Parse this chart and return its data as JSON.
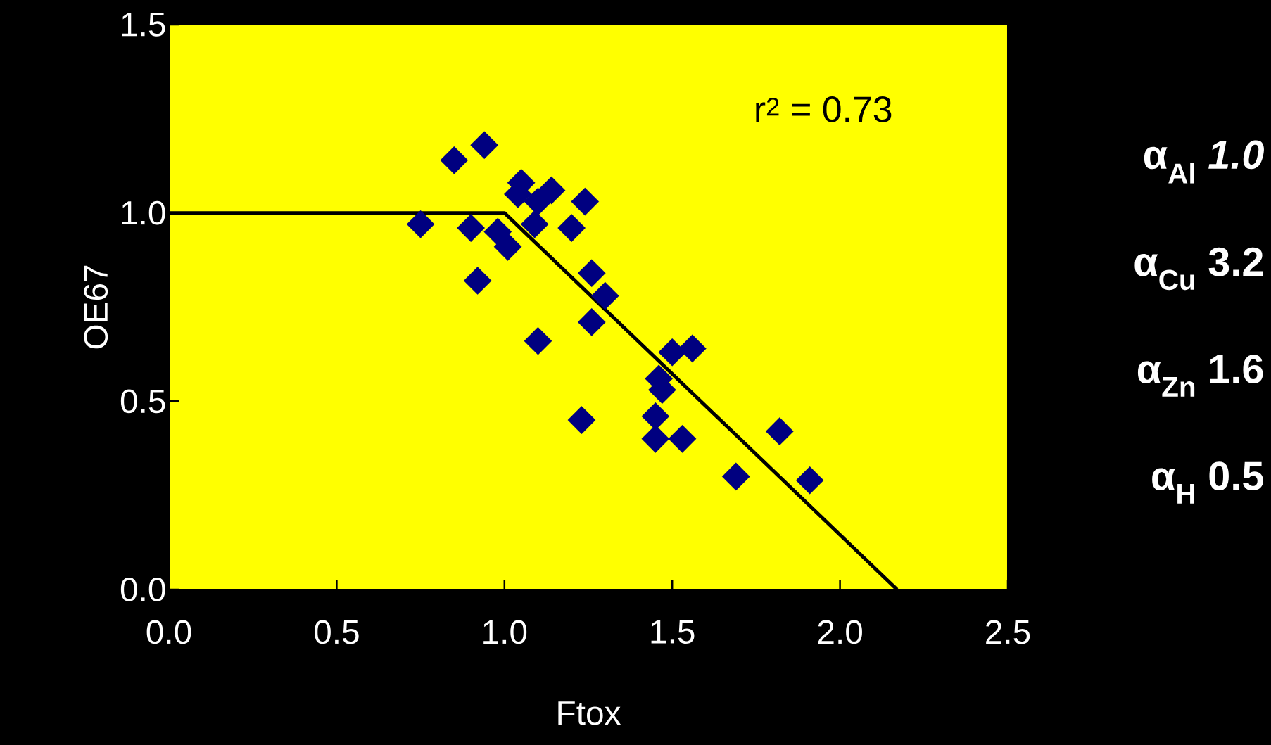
{
  "chart_data": {
    "type": "scatter",
    "xlabel": "Ftox",
    "ylabel": "OE67",
    "xlim": [
      0,
      2.5
    ],
    "ylim": [
      0,
      1.5
    ],
    "xticks": [
      {
        "value": 0,
        "label": "0.0"
      },
      {
        "value": 0.5,
        "label": "0.5"
      },
      {
        "value": 1,
        "label": "1.0"
      },
      {
        "value": 1.5,
        "label": "1.5"
      },
      {
        "value": 2,
        "label": "2.0"
      },
      {
        "value": 2.5,
        "label": "2.5"
      }
    ],
    "yticks": [
      {
        "value": 0,
        "label": "0.0"
      },
      {
        "value": 0.5,
        "label": "0.5"
      },
      {
        "value": 1,
        "label": "1.0"
      },
      {
        "value": 1.5,
        "label": "1.5"
      }
    ],
    "grid": false,
    "annotations": [
      "r$^{2}$ = 0.73",
      "α$_{Al}$   *1.0*",
      "α$_{Cu}$   3.2",
      "α$_{Zn}$   1.6",
      "α$_{H}$   0.5"
    ],
    "series": [
      {
        "marker": "diamond",
        "color": "#000080",
        "x": [
          0.75,
          0.85,
          0.94,
          0.9,
          0.92,
          0.98,
          1.01,
          1.04,
          1.05,
          1.09,
          1.1,
          1.14,
          1.1,
          1.24,
          1.2,
          1.26,
          1.3,
          1.26,
          1.23,
          1.46,
          1.47,
          1.45,
          1.45,
          1.5,
          1.56,
          1.53,
          1.69,
          1.82,
          1.91
        ],
        "values": [
          0.97,
          1.14,
          1.18,
          0.96,
          0.82,
          0.95,
          0.91,
          1.05,
          1.08,
          0.97,
          1.03,
          1.06,
          0.66,
          1.03,
          0.96,
          0.84,
          0.78,
          0.71,
          0.45,
          0.56,
          0.53,
          0.46,
          0.4,
          0.63,
          0.64,
          0.4,
          0.3,
          0.42,
          0.29
        ]
      },
      {
        "type": "line",
        "color": "#000000",
        "x": [
          0,
          1,
          2.17
        ],
        "values": [
          1,
          1,
          0
        ]
      }
    ]
  }
}
